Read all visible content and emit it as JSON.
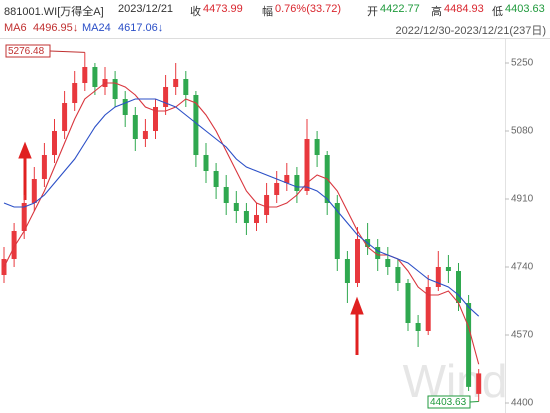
{
  "header": {
    "code": "881001.WI[万得全A]",
    "date": "2023/12/21",
    "quotes": [
      {
        "label": "收",
        "value": "4473.99",
        "color": "#d9262e"
      },
      {
        "label": "幅",
        "value": "0.76%(33.72)",
        "color": "#d9262e"
      },
      {
        "label": "开",
        "value": "4422.77",
        "color": "#1f9a3c"
      },
      {
        "label": "高",
        "value": "4484.93",
        "color": "#d9262e"
      },
      {
        "label": "低",
        "value": "4403.63",
        "color": "#1f9a3c"
      }
    ],
    "ma_values": [
      "4496.95↓",
      "4617.06↓"
    ],
    "range": "2022/12/30-2023/12/21(237日)"
  },
  "chart_data": {
    "type": "candlestick",
    "open": [
      4720,
      4760,
      4830,
      4900,
      4960,
      5020,
      5080,
      5150,
      5200,
      5240,
      5190,
      5210,
      5160,
      5120,
      5060,
      5080,
      5140,
      5190,
      5210,
      5170,
      5020,
      4980,
      4940,
      4900,
      4880,
      4850,
      4870,
      4920,
      4950,
      4970,
      4930,
      5060,
      5020,
      4900,
      4760,
      4700,
      4810,
      4790,
      4760,
      4740,
      4700,
      4600,
      4580,
      4690,
      4740,
      4730,
      4650,
      4422.77
    ],
    "high": [
      4790,
      4850,
      4920,
      4990,
      5050,
      5110,
      5180,
      5230,
      5276.48,
      5250,
      5240,
      5230,
      5180,
      5140,
      5110,
      5160,
      5220,
      5250,
      5230,
      5180,
      5050,
      5000,
      4970,
      4930,
      4900,
      4900,
      4950,
      4980,
      5000,
      4990,
      5110,
      5080,
      5030,
      4920,
      4780,
      4840,
      4850,
      4810,
      4790,
      4760,
      4710,
      4620,
      4720,
      4780,
      4770,
      4750,
      4670,
      4484.93
    ],
    "low": [
      4700,
      4740,
      4810,
      4880,
      4940,
      5000,
      5060,
      5130,
      5180,
      5170,
      5170,
      5140,
      5090,
      5030,
      5040,
      5060,
      5120,
      5170,
      5140,
      4990,
      4950,
      4910,
      4870,
      4850,
      4820,
      4830,
      4850,
      4900,
      4930,
      4900,
      4920,
      4990,
      4870,
      4730,
      4650,
      4690,
      4770,
      4730,
      4720,
      4680,
      4580,
      4540,
      4570,
      4680,
      4700,
      4630,
      4430,
      4403.63
    ],
    "close": [
      4760,
      4830,
      4900,
      4960,
      5020,
      5080,
      5150,
      5200,
      5240,
      5190,
      5210,
      5160,
      5120,
      5060,
      5080,
      5140,
      5190,
      5210,
      5170,
      5020,
      4980,
      4940,
      4900,
      4880,
      4850,
      4870,
      4920,
      4950,
      4970,
      4930,
      5060,
      5020,
      4900,
      4760,
      4700,
      4810,
      4790,
      4760,
      4740,
      4700,
      4600,
      4580,
      4690,
      4740,
      4730,
      4650,
      4440.27,
      4473.99
    ],
    "up_color": "#e8383d",
    "down_color": "#2fa84f",
    "series": [
      {
        "name": "MA6",
        "color": "#d9363e",
        "values": [
          4740,
          4790,
          4830,
          4880,
          4930,
          4990,
          5050,
          5110,
          5160,
          5180,
          5200,
          5200,
          5190,
          5170,
          5140,
          5130,
          5130,
          5140,
          5160,
          5150,
          5120,
          5080,
          5030,
          4980,
          4930,
          4900,
          4890,
          4890,
          4900,
          4920,
          4950,
          4970,
          4960,
          4930,
          4880,
          4830,
          4790,
          4770,
          4770,
          4760,
          4730,
          4690,
          4670,
          4670,
          4680,
          4650,
          4590,
          4496.95
        ]
      },
      {
        "name": "MA24",
        "color": "#2b4fc7",
        "values": [
          4900,
          4890,
          4890,
          4900,
          4920,
          4950,
          4980,
          5010,
          5050,
          5090,
          5120,
          5140,
          5150,
          5160,
          5160,
          5160,
          5150,
          5140,
          5120,
          5100,
          5080,
          5060,
          5040,
          5010,
          4990,
          4980,
          4970,
          4960,
          4950,
          4940,
          4940,
          4930,
          4910,
          4880,
          4850,
          4820,
          4800,
          4780,
          4770,
          4760,
          4750,
          4730,
          4710,
          4700,
          4690,
          4670,
          4640,
          4617.06
        ]
      }
    ],
    "ylim": [
      4375,
      5295
    ],
    "yticks": [
      4400,
      4570,
      4740,
      4910,
      5080,
      5250
    ],
    "watermark": "Wind"
  }
}
